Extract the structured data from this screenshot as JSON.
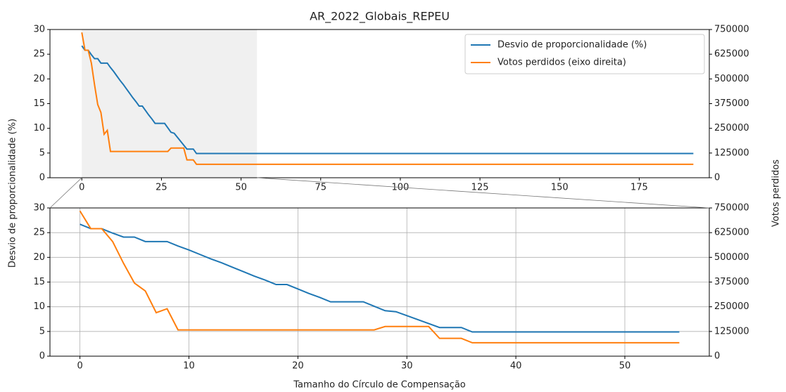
{
  "chart_data": [
    {
      "type": "line",
      "title": "AR_2022_Globais_REPEU",
      "ylabel": "Desvio de proporcionalidade (%)",
      "y2label": "Votos perdidos",
      "x": [
        0,
        1,
        2,
        3,
        4,
        5,
        6,
        7,
        8,
        9,
        10,
        11,
        12,
        13,
        14,
        15,
        16,
        17,
        18,
        19,
        20,
        21,
        22,
        23,
        24,
        25,
        26,
        27,
        28,
        29,
        30,
        31,
        32,
        33,
        34,
        35,
        36,
        192
      ],
      "series": [
        {
          "name": "Desvio de proporcionalidade (%)",
          "color": "#1f77b4",
          "values": [
            26.7,
            25.8,
            25.8,
            24.9,
            24.1,
            24.1,
            23.2,
            23.2,
            23.2,
            22.3,
            21.5,
            20.6,
            19.7,
            18.9,
            18.0,
            17.1,
            16.2,
            15.4,
            14.5,
            14.5,
            13.6,
            12.7,
            11.9,
            11.0,
            11.0,
            11.0,
            11.0,
            10.1,
            9.2,
            9.0,
            8.2,
            7.4,
            6.6,
            5.8,
            5.8,
            5.8,
            4.9,
            4.9
          ]
        },
        {
          "name": "Votos perdidos (eixo direita)",
          "color": "#ff7f0e",
          "axis": "y2",
          "values": [
            735000,
            645000,
            645000,
            580000,
            470000,
            370000,
            330000,
            220000,
            240000,
            133000,
            133000,
            133000,
            133000,
            133000,
            133000,
            133000,
            133000,
            133000,
            133000,
            133000,
            133000,
            133000,
            133000,
            133000,
            133000,
            133000,
            133000,
            133000,
            150000,
            150000,
            150000,
            150000,
            150000,
            90000,
            90000,
            90000,
            68000,
            68000
          ]
        }
      ],
      "xlim": [
        -10,
        197
      ],
      "xticks": [
        0,
        25,
        50,
        75,
        100,
        125,
        150,
        175
      ],
      "ylim": [
        0,
        30
      ],
      "yticks": [
        0,
        5,
        10,
        15,
        20,
        25,
        30
      ],
      "y2lim": [
        0,
        750000
      ],
      "y2ticks": [
        0,
        125000,
        250000,
        375000,
        500000,
        625000,
        750000
      ],
      "highlight": [
        0,
        55
      ],
      "legend": "upper right",
      "grid": false
    },
    {
      "type": "line",
      "xlabel": "Tamanho do Círculo de Compensação",
      "x": [
        0,
        1,
        2,
        3,
        4,
        5,
        6,
        7,
        8,
        9,
        10,
        11,
        12,
        13,
        14,
        15,
        16,
        17,
        18,
        19,
        20,
        21,
        22,
        23,
        24,
        25,
        26,
        27,
        28,
        29,
        30,
        31,
        32,
        33,
        34,
        35,
        36,
        55
      ],
      "series": [
        {
          "color": "#1f77b4",
          "values": [
            26.7,
            25.8,
            25.8,
            24.9,
            24.1,
            24.1,
            23.2,
            23.2,
            23.2,
            22.3,
            21.5,
            20.6,
            19.7,
            18.9,
            18.0,
            17.1,
            16.2,
            15.4,
            14.5,
            14.5,
            13.6,
            12.7,
            11.9,
            11.0,
            11.0,
            11.0,
            11.0,
            10.1,
            9.2,
            9.0,
            8.2,
            7.4,
            6.6,
            5.8,
            5.8,
            5.8,
            4.9,
            4.9
          ]
        },
        {
          "color": "#ff7f0e",
          "axis": "y2",
          "values": [
            735000,
            645000,
            645000,
            580000,
            470000,
            370000,
            330000,
            220000,
            240000,
            133000,
            133000,
            133000,
            133000,
            133000,
            133000,
            133000,
            133000,
            133000,
            133000,
            133000,
            133000,
            133000,
            133000,
            133000,
            133000,
            133000,
            133000,
            133000,
            150000,
            150000,
            150000,
            150000,
            150000,
            90000,
            90000,
            90000,
            68000,
            68000
          ]
        }
      ],
      "xlim": [
        -2.75,
        57.75
      ],
      "xticks": [
        0,
        10,
        20,
        30,
        40,
        50
      ],
      "ylim": [
        0,
        30
      ],
      "yticks": [
        0,
        5,
        10,
        15,
        20,
        25,
        30
      ],
      "y2lim": [
        0,
        750000
      ],
      "y2ticks": [
        0,
        125000,
        250000,
        375000,
        500000,
        625000,
        750000
      ],
      "grid": true
    }
  ]
}
